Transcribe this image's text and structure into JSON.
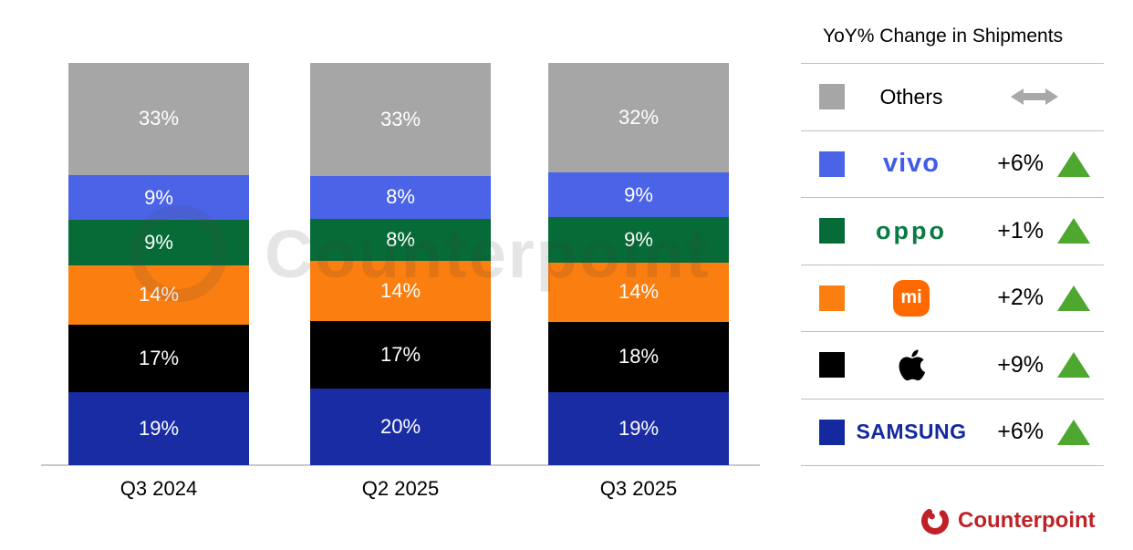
{
  "chart_data": {
    "type": "bar",
    "stacked": true,
    "unit": "%",
    "title": "",
    "xlabel": "",
    "ylabel": "",
    "grid": false,
    "legend_position": "right",
    "categories": [
      "Q3 2024",
      "Q2 2025",
      "Q3 2025"
    ],
    "series": [
      {
        "name": "Samsung",
        "color": "#1a2ca4",
        "values": [
          19,
          20,
          19
        ]
      },
      {
        "name": "Apple",
        "color": "#000000",
        "values": [
          17,
          17,
          18
        ]
      },
      {
        "name": "Xiaomi",
        "color": "#fa7e10",
        "values": [
          14,
          14,
          14
        ]
      },
      {
        "name": "OPPO",
        "color": "#076b38",
        "values": [
          9,
          8,
          9
        ]
      },
      {
        "name": "vivo",
        "color": "#4a63e7",
        "values": [
          9,
          8,
          9
        ]
      },
      {
        "name": "Others",
        "color": "#a6a6a6",
        "values": [
          33,
          33,
          32
        ]
      }
    ],
    "yoy_change": {
      "Others": null,
      "vivo": "+6%",
      "OPPO": "+1%",
      "Xiaomi": "+2%",
      "Apple": "+9%",
      "Samsung": "+6%"
    }
  },
  "legend": {
    "header": "YoY% Change in Shipments",
    "rows": [
      {
        "brand": "Others",
        "logo_text": "Others",
        "swatch": "#a6a6a6",
        "change": "",
        "direction": "flat"
      },
      {
        "brand": "vivo",
        "logo_text": "vivo",
        "swatch": "#4a63e7",
        "change": "+6%",
        "direction": "up"
      },
      {
        "brand": "OPPO",
        "logo_text": "oppo",
        "swatch": "#076b38",
        "change": "+1%",
        "direction": "up"
      },
      {
        "brand": "Xiaomi",
        "logo_text": "mi",
        "swatch": "#fa7e10",
        "change": "+2%",
        "direction": "up"
      },
      {
        "brand": "Apple",
        "logo_text": "",
        "swatch": "#000000",
        "change": "+9%",
        "direction": "up"
      },
      {
        "brand": "Samsung",
        "logo_text": "SAMSUNG",
        "swatch": "#1428a0",
        "change": "+6%",
        "direction": "up"
      }
    ]
  },
  "colors": {
    "up_triangle": "#4ea72e",
    "flat_arrow": "#a8a8a8",
    "brand_red": "#be2126",
    "axis_line": "#c9c9c9"
  },
  "watermark": "Counterpoint",
  "branding": {
    "logo_text": "Counterpoint"
  }
}
